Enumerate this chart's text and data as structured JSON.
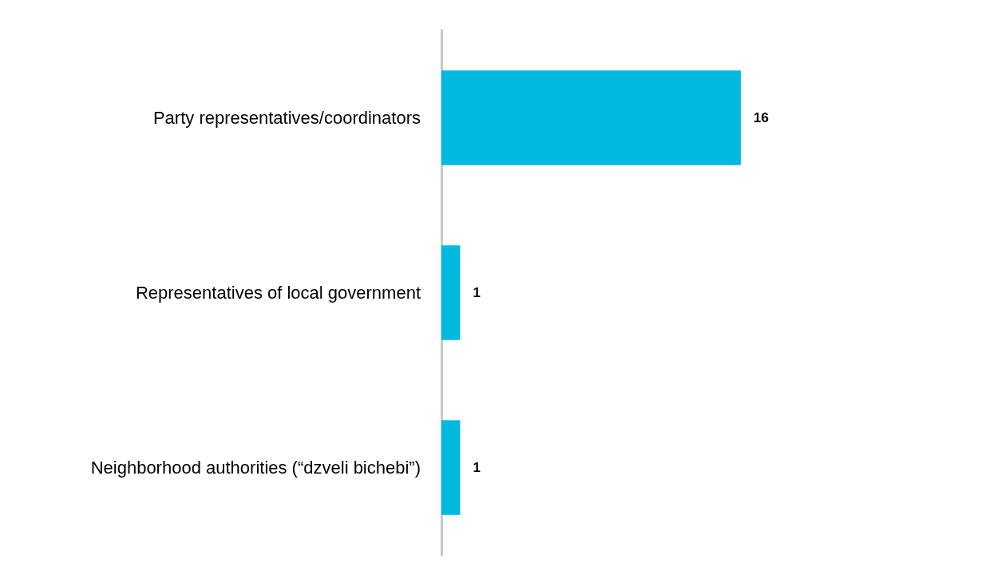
{
  "chart_data": {
    "type": "bar",
    "orientation": "horizontal",
    "categories": [
      "Party representatives/coordinators",
      "Representatives of local government",
      "Neighborhood authorities (“dzveli bichebi”)"
    ],
    "values": [
      16,
      1,
      1
    ],
    "color": "#00b9e0",
    "data_labels": true
  }
}
